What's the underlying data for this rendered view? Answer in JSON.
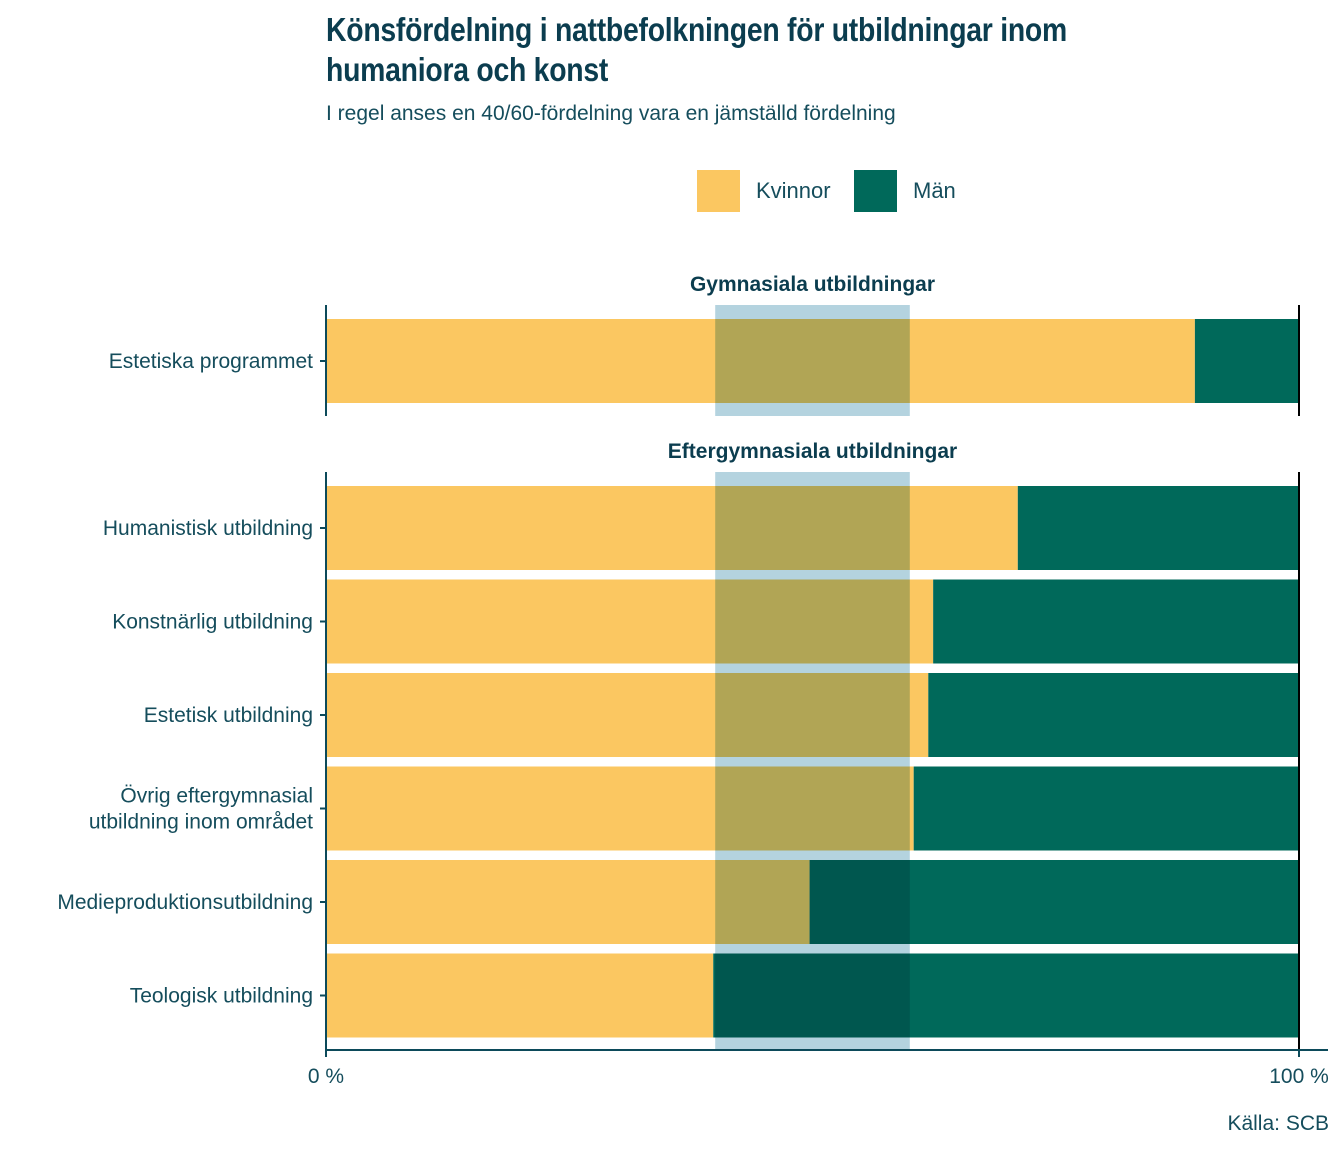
{
  "chart_data": {
    "type": "bar",
    "orientation": "horizontal",
    "stacked": true,
    "percent_stacked": true,
    "title": "Könsfördelning i nattbefolkningen för utbildningar inom humaniora och konst",
    "subtitle": "I regel anses en 40/60-fördelning vara en jämställd fördelning",
    "legend": {
      "position": "top",
      "entries": [
        {
          "name": "Kvinnor",
          "color": "#fbc761"
        },
        {
          "name": "Män",
          "color": "#00695a"
        }
      ]
    },
    "xlim": [
      0,
      100
    ],
    "x_tick_labels": [
      "0 %",
      "100 %"
    ],
    "x_ticks": [
      0,
      100
    ],
    "xlabel": "",
    "ylabel": "",
    "grid": false,
    "reference_band": {
      "from": 40,
      "to": 60,
      "color": "#9fc6d6",
      "label": "40/60-fördelning"
    },
    "panels": [
      {
        "title": "Gymnasiala utbildningar",
        "categories": [
          "Estetiska programmet"
        ],
        "series": [
          {
            "name": "Kvinnor",
            "values": [
              89.3
            ]
          },
          {
            "name": "Män",
            "values": [
              10.7
            ]
          }
        ]
      },
      {
        "title": "Eftergymnasiala utbildningar",
        "categories": [
          "Humanistisk utbildning",
          "Konstnärlig utbildning",
          "Estetisk utbildning",
          "Övrig eftergymnasial\nutbildning inom området",
          "Medieproduktionsutbildning",
          "Teologisk utbildning"
        ],
        "series": [
          {
            "name": "Kvinnor",
            "values": [
              71.1,
              62.4,
              61.9,
              60.4,
              49.7,
              39.8
            ]
          },
          {
            "name": "Män",
            "values": [
              28.9,
              37.6,
              38.1,
              39.6,
              50.3,
              60.2
            ]
          }
        ]
      }
    ],
    "source": "Källa: SCB"
  }
}
